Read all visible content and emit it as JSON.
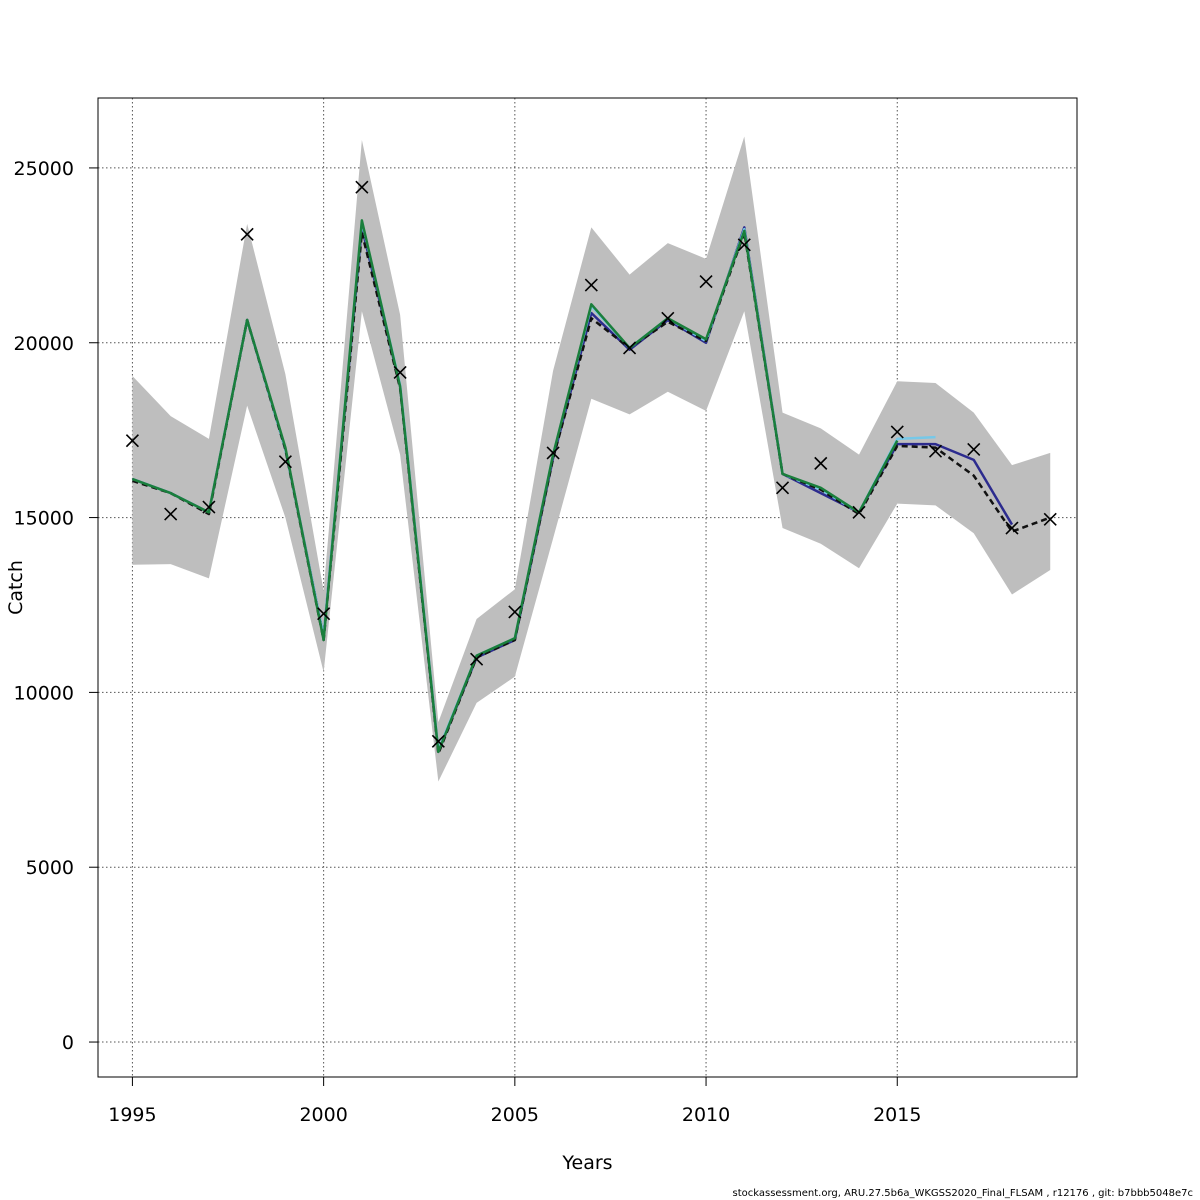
{
  "chart_data": {
    "type": "line",
    "title": "",
    "xlabel": "Years",
    "ylabel": "Catch",
    "xlim": [
      1994.1,
      2019.7
    ],
    "ylim": [
      -1000,
      27000
    ],
    "xticks": [
      1995,
      2000,
      2005,
      2010,
      2015
    ],
    "yticks": [
      0,
      5000,
      10000,
      15000,
      20000,
      25000
    ],
    "xtick_labels": [
      "1995",
      "2000",
      "2005",
      "2010",
      "2015"
    ],
    "ytick_labels": [
      "0",
      "5000",
      "10000",
      "15000",
      "20000",
      "25000"
    ],
    "grid": true,
    "confidence_band": {
      "color": "#bebebe",
      "x": [
        1995,
        1996,
        1997,
        1998,
        1999,
        2000,
        2001,
        2002,
        2003,
        2004,
        2005,
        2006,
        2007,
        2008,
        2009,
        2010,
        2011,
        2012,
        2013,
        2014,
        2015,
        2016,
        2017,
        2018,
        2019
      ],
      "lower": [
        13650,
        13670,
        13260,
        18200,
        15000,
        10580,
        20900,
        16800,
        7450,
        9700,
        10450,
        14400,
        18400,
        17950,
        18600,
        18050,
        20900,
        14700,
        14250,
        13550,
        15400,
        15350,
        14550,
        12800,
        13500
      ],
      "upper": [
        19050,
        17900,
        17250,
        23400,
        19100,
        12900,
        25800,
        20800,
        9150,
        12100,
        12950,
        19200,
        23300,
        21950,
        22850,
        22400,
        25900,
        18000,
        17550,
        16800,
        18900,
        18850,
        18000,
        16500,
        16850
      ]
    },
    "series": [
      {
        "color": "#2c2b8e",
        "dash": "",
        "x": [
          1995,
          1996,
          1997,
          1998,
          1999,
          2000,
          2001,
          2002,
          2003,
          2004,
          2005,
          2006,
          2007,
          2008,
          2009,
          2010,
          2011,
          2012,
          2013,
          2014,
          2015,
          2016,
          2017,
          2018
        ],
        "values": [
          16100,
          15700,
          15150,
          20650,
          16950,
          11600,
          23300,
          18750,
          8300,
          11000,
          11500,
          16700,
          20850,
          19800,
          20650,
          20000,
          23300,
          16250,
          15700,
          15150,
          17100,
          17100,
          16650,
          14800
        ]
      },
      {
        "color": "#76c8e8",
        "dash": "",
        "x": [
          1995,
          1996,
          1997,
          1998,
          1999,
          2000,
          2001,
          2002,
          2003,
          2004,
          2005,
          2006,
          2007,
          2008,
          2009,
          2010,
          2011,
          2012,
          2013,
          2014,
          2015,
          2016
        ],
        "values": [
          16100,
          15700,
          15150,
          20650,
          16950,
          11600,
          23450,
          18800,
          8350,
          11050,
          11550,
          16800,
          21050,
          19850,
          20700,
          20050,
          23250,
          16250,
          15800,
          15150,
          17250,
          17300
        ]
      },
      {
        "color": "#111111",
        "dash": "6 4",
        "x": [
          1995,
          1996,
          1997,
          1998,
          1999,
          2000,
          2001,
          2002,
          2003,
          2004,
          2005,
          2006,
          2007,
          2008,
          2009,
          2010,
          2011,
          2012,
          2013,
          2014,
          2015,
          2016,
          2017,
          2018,
          2019
        ],
        "values": [
          16050,
          15700,
          15100,
          20650,
          16950,
          11500,
          23150,
          18700,
          8250,
          11000,
          11500,
          16700,
          20700,
          19850,
          20600,
          20050,
          23150,
          16250,
          15800,
          15100,
          17050,
          17000,
          16200,
          14600,
          15000
        ]
      },
      {
        "color": "#1a7f3c",
        "dash": "",
        "x": [
          1995,
          1996,
          1997,
          1998,
          1999,
          2000,
          2001,
          2002,
          2003,
          2004,
          2005,
          2006,
          2007,
          2008,
          2009,
          2010,
          2011,
          2012,
          2013,
          2014,
          2015
        ],
        "values": [
          16100,
          15700,
          15150,
          20650,
          17000,
          11500,
          23500,
          18750,
          8300,
          11050,
          11550,
          16800,
          21100,
          19850,
          20700,
          20100,
          23200,
          16250,
          15850,
          15150,
          17200
        ]
      }
    ],
    "observed": {
      "marker": "x",
      "color": "#000000",
      "x": [
        1995,
        1996,
        1997,
        1998,
        1999,
        2000,
        2001,
        2002,
        2003,
        2004,
        2005,
        2006,
        2007,
        2008,
        2009,
        2010,
        2011,
        2012,
        2013,
        2014,
        2015,
        2016,
        2017,
        2018,
        2019
      ],
      "values": [
        17200,
        15100,
        15300,
        23100,
        16600,
        12250,
        24450,
        19150,
        8600,
        10950,
        12300,
        16850,
        21650,
        19850,
        20700,
        21750,
        22800,
        15850,
        16550,
        15150,
        17450,
        16900,
        16950,
        14700,
        14950
      ]
    }
  },
  "footer": "stockassessment.org, ARU.27.5b6a_WKGSS2020_Final_FLSAM , r12176 , git: b7bbb5048e7c"
}
